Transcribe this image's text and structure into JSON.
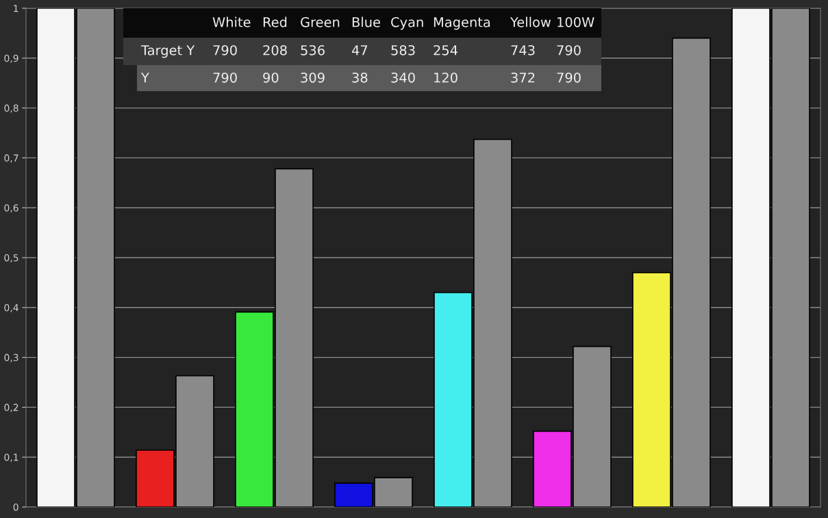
{
  "chart_data": {
    "type": "bar",
    "categories": [
      null,
      null,
      null,
      null,
      null,
      null,
      null,
      null
    ],
    "series": [
      {
        "colors": [
          "#f5f5f5",
          "#e82020",
          "#39e83c",
          "#1010e0",
          "#45eeee",
          "#ee2ee8",
          "#f2f040",
          "#f5f5f5"
        ],
        "values": [
          1.0,
          0.114,
          0.391,
          0.048,
          0.43,
          0.152,
          0.47,
          1.0
        ]
      },
      {
        "color": "#8a8a8a",
        "values": [
          1.0,
          0.263,
          0.678,
          0.059,
          0.737,
          0.322,
          0.94,
          1.0
        ]
      }
    ],
    "ylim": [
      0,
      1
    ],
    "yticks": [
      0,
      {
        "value": 0.1,
        "label": "0,1"
      },
      {
        "value": 0.2,
        "label": "0,2"
      },
      {
        "value": 0.3,
        "label": "0,3"
      },
      {
        "value": 0.4,
        "label": "0,4"
      },
      {
        "value": 0.5,
        "label": "0,5"
      },
      {
        "value": 0.6,
        "label": "0,6"
      },
      {
        "value": 0.7,
        "label": "0,7"
      },
      {
        "value": 0.8,
        "label": "0,8"
      },
      {
        "value": 0.9,
        "label": "0,9"
      },
      1
    ],
    "grid": "y",
    "legend": false,
    "annotations": [
      "White",
      "Red",
      "Green",
      "Blue",
      "Cyan",
      "Magenta",
      "Yellow",
      "100W",
      "Target Y",
      "790",
      "208",
      "536",
      "47",
      "583",
      "254",
      "743",
      "790",
      "Y",
      "790",
      "90",
      "309",
      "38",
      "340",
      "120",
      "372",
      "790"
    ]
  }
}
